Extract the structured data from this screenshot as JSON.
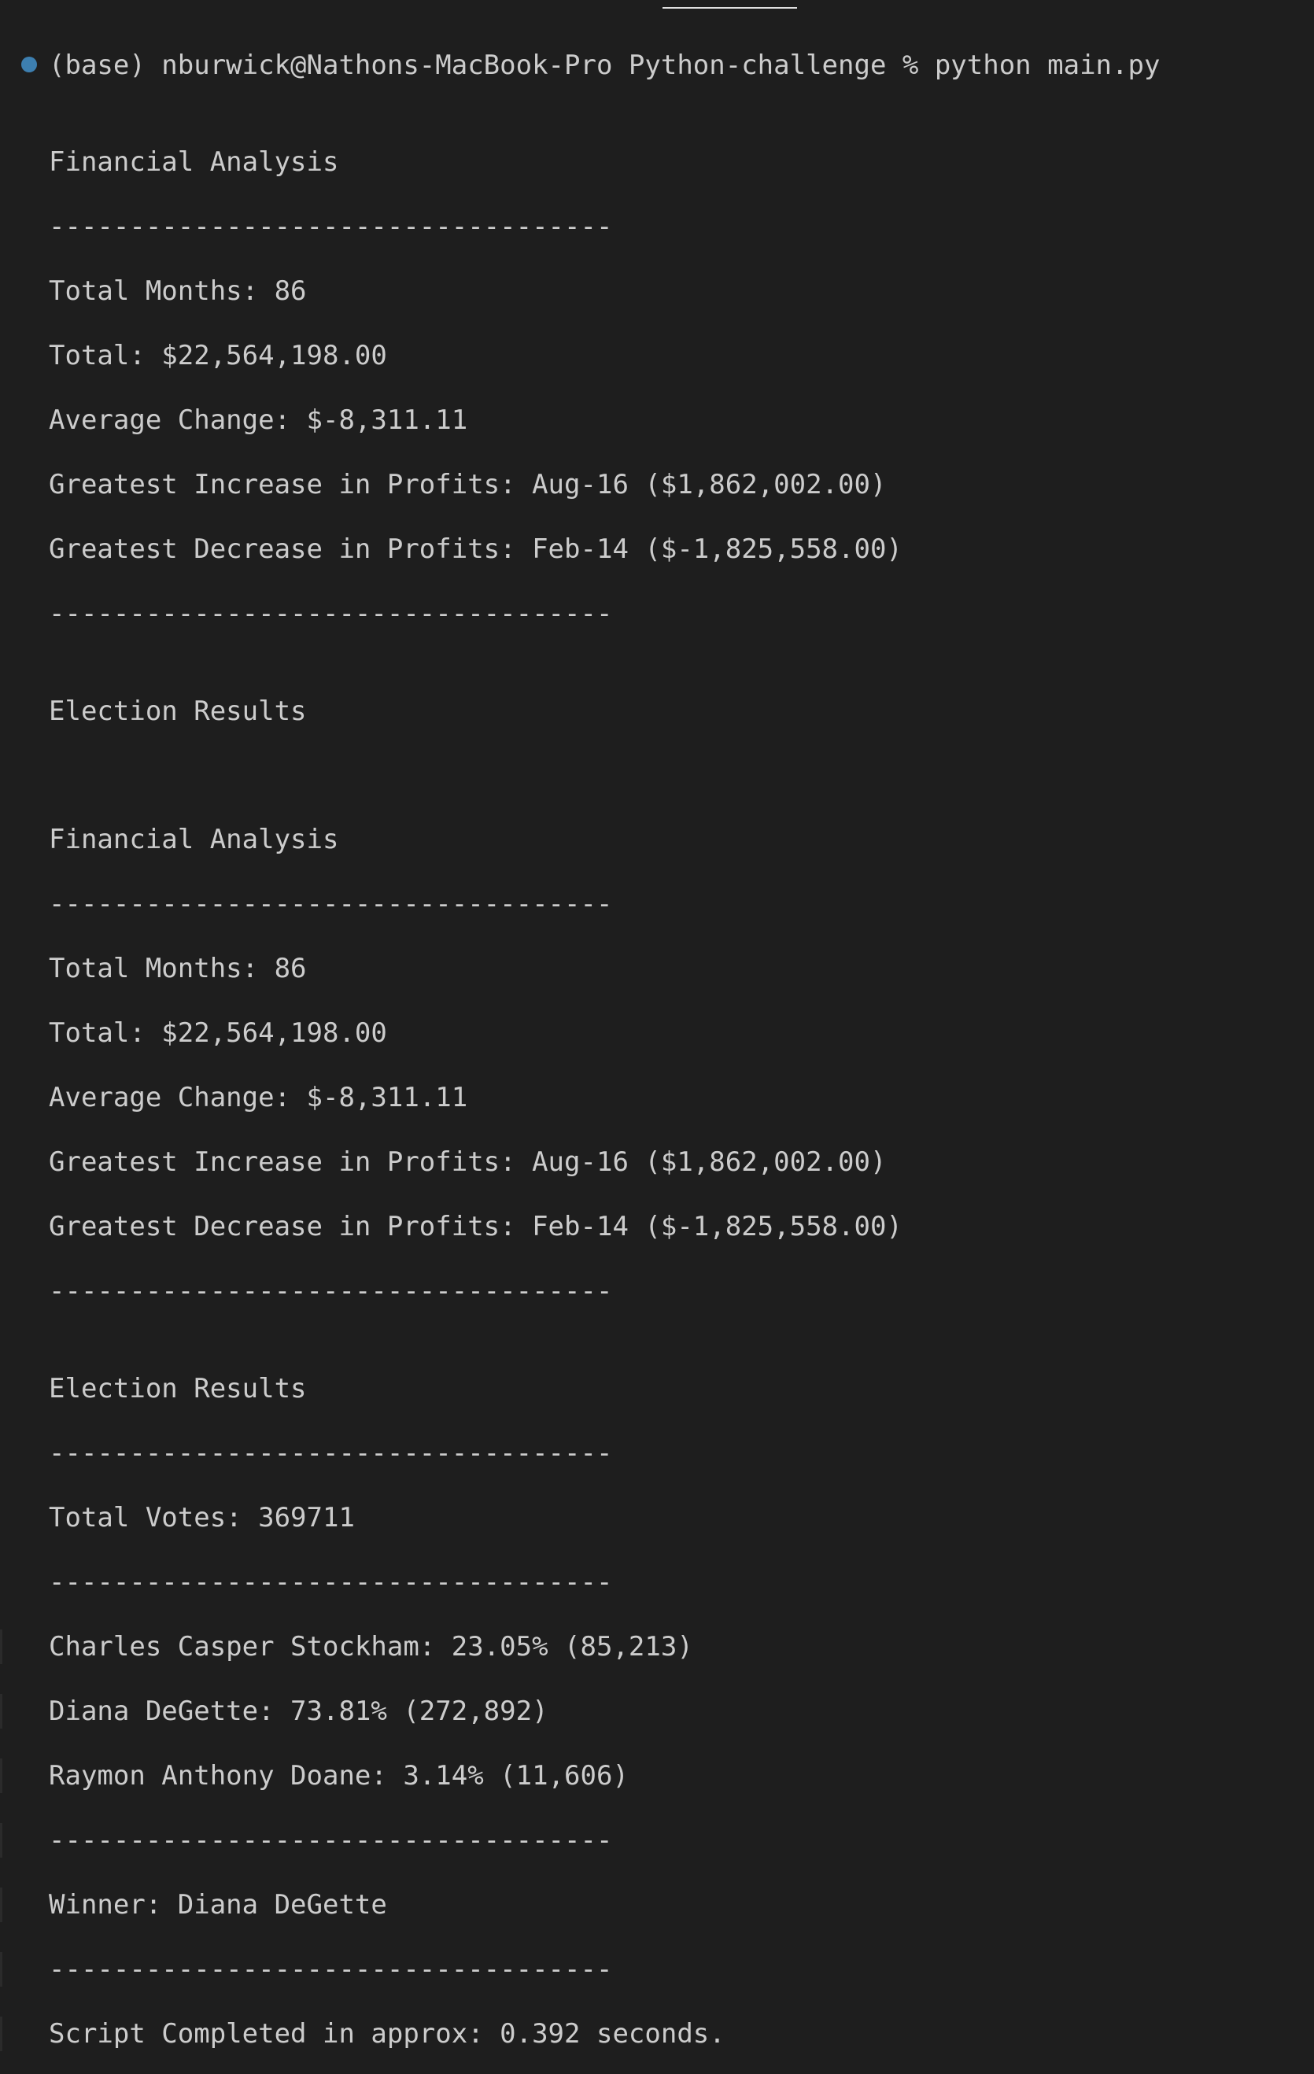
{
  "terminal": {
    "prompt": "(base) nburwick@Nathons-MacBook-Pro Python-challenge % python main.py",
    "lines": [
      "Financial Analysis",
      "-----------------------------------",
      "Total Months: 86",
      "Total: $22,564,198.00",
      "Average Change: $-8,311.11",
      "Greatest Increase in Profits: Aug-16 ($1,862,002.00)",
      "Greatest Decrease in Profits: Feb-14 ($-1,825,558.00)",
      "-----------------------------------",
      "Election Results",
      "Financial Analysis",
      "-----------------------------------",
      "Total Months: 86",
      "Total: $22,564,198.00",
      "Average Change: $-8,311.11",
      "Greatest Increase in Profits: Aug-16 ($1,862,002.00)",
      "Greatest Decrease in Profits: Feb-14 ($-1,825,558.00)",
      "-----------------------------------",
      "Election Results",
      "-----------------------------------",
      "Total Votes: 369711",
      "-----------------------------------",
      "Charles Casper Stockham: 23.05% (85,213)",
      "Diana DeGette: 73.81% (272,892)",
      "Raymon Anthony Doane: 3.14% (11,606)",
      "-----------------------------------",
      "Winner: Diana DeGette",
      "-----------------------------------",
      "Script Completed in approx: 0.392 seconds."
    ]
  }
}
